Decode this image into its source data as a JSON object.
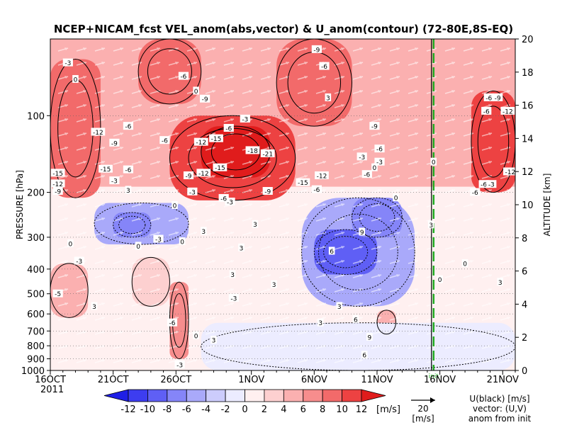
{
  "chart_data": {
    "type": "heatmap",
    "title": "NCEP+NICAM_fcst VEL_anom(abs,vector) & U_anom(contour)   (72-80E,8S-EQ)",
    "xlabel": "",
    "ylabel": "PRESSURE [hPa]",
    "ylabel_right": "ALTITUDE [km]",
    "year_label": "2011",
    "x_tick_labels": [
      "16OCT",
      "21OCT",
      "26OCT",
      "1NOV",
      "6NOV",
      "11NOV",
      "16NOV",
      "21NOV"
    ],
    "x_tick_days_from_16oct": [
      0,
      5,
      10,
      16,
      21,
      26,
      31,
      36
    ],
    "x_range_days_from_16oct": [
      0,
      37
    ],
    "y_tick_labels": [
      "100",
      "200",
      "300",
      "400",
      "500",
      "600",
      "700",
      "800",
      "900",
      "1000"
    ],
    "y_tick_values_hpa": [
      100,
      200,
      300,
      400,
      500,
      600,
      700,
      800,
      900,
      1000
    ],
    "y_range_hpa": [
      1000,
      50
    ],
    "y_scale": "log-pressure",
    "y_right_tick_labels": [
      "0",
      "2",
      "4",
      "6",
      "8",
      "10",
      "12",
      "14",
      "16",
      "18",
      "20"
    ],
    "colorbar_labels": [
      "-12",
      "-10",
      "-8",
      "-6",
      "-4",
      "-2",
      "0",
      "2",
      "4",
      "6",
      "8",
      "10",
      "12"
    ],
    "colorbar_unit": "[m/s]",
    "colorbar_colors": [
      "#1f1fe6",
      "#3d3df0",
      "#5f5ff5",
      "#8585f8",
      "#a9a9fa",
      "#ccccfc",
      "#ececff",
      "#fff0f0",
      "#fdd0d0",
      "#fbb0b0",
      "#f78d8d",
      "#f26a6a",
      "#ed4242",
      "#e01c1c"
    ],
    "forecast_init_marker": {
      "label": "init",
      "day": 30.5,
      "color": "#22aa22"
    },
    "vector_reference": {
      "value": "20",
      "unit": "[m/s]"
    },
    "legend_note": [
      "U(black) [m/s]",
      "vector: (U,V)",
      "anom from init"
    ],
    "regions": [
      {
        "x0": 0,
        "x1": 37,
        "p0": 190,
        "p1": 1000,
        "value": 1
      },
      {
        "x0": 0,
        "x1": 37,
        "p0": 50,
        "p1": 190,
        "value": 4
      },
      {
        "x0": 9.5,
        "x1": 19.5,
        "p0": 100,
        "p1": 215,
        "value": 11
      },
      {
        "x0": 12,
        "x1": 17.5,
        "p0": 110,
        "p1": 175,
        "value": 13
      },
      {
        "x0": 0,
        "x1": 4,
        "p0": 60,
        "p1": 210,
        "value": 8
      },
      {
        "x0": 33.5,
        "x1": 37,
        "p0": 80,
        "p1": 200,
        "value": 10
      },
      {
        "x0": 7,
        "x1": 12,
        "p0": 50,
        "p1": 90,
        "value": 9
      },
      {
        "x0": 18,
        "x1": 24,
        "p0": 50,
        "p1": 110,
        "value": 8
      },
      {
        "x0": 3.5,
        "x1": 11,
        "p0": 220,
        "p1": 320,
        "value": -5
      },
      {
        "x0": 5,
        "x1": 8,
        "p0": 240,
        "p1": 300,
        "value": -8
      },
      {
        "x0": 20,
        "x1": 29,
        "p0": 210,
        "p1": 560,
        "value": -6
      },
      {
        "x0": 21,
        "x1": 26,
        "p0": 280,
        "p1": 420,
        "value": -9
      },
      {
        "x0": 24,
        "x1": 28,
        "p0": 210,
        "p1": 300,
        "value": -7
      },
      {
        "x0": 0,
        "x1": 3,
        "p0": 380,
        "p1": 620,
        "value": 5
      },
      {
        "x0": 9.5,
        "x1": 11,
        "p0": 450,
        "p1": 900,
        "value": 6
      },
      {
        "x0": 6.5,
        "x1": 9.5,
        "p0": 360,
        "p1": 560,
        "value": 2
      },
      {
        "x0": 26,
        "x1": 27.5,
        "p0": 580,
        "p1": 720,
        "value": 5
      },
      {
        "x0": 12,
        "x1": 37,
        "p0": 650,
        "p1": 1000,
        "value": -1
      }
    ],
    "contour_labels": [
      {
        "text": "-3",
        "x": 1.4,
        "p": 62
      },
      {
        "text": "0",
        "x": 2.0,
        "p": 72
      },
      {
        "text": "-6",
        "x": 10.6,
        "p": 70
      },
      {
        "text": "0",
        "x": 11.6,
        "p": 80
      },
      {
        "text": "-9",
        "x": 12.3,
        "p": 86
      },
      {
        "text": "-9",
        "x": 21.2,
        "p": 55
      },
      {
        "text": "-6",
        "x": 21.8,
        "p": 64
      },
      {
        "text": "3",
        "x": 22.1,
        "p": 85
      },
      {
        "text": "-6",
        "x": 34.9,
        "p": 85
      },
      {
        "text": "-9",
        "x": 35.6,
        "p": 85
      },
      {
        "text": "-12",
        "x": 36.4,
        "p": 96
      },
      {
        "text": "-6",
        "x": 34.7,
        "p": 96
      },
      {
        "text": "-12",
        "x": 3.8,
        "p": 116
      },
      {
        "text": "-9",
        "x": 5.1,
        "p": 128
      },
      {
        "text": "-6",
        "x": 6.2,
        "p": 110
      },
      {
        "text": "-6",
        "x": 9.1,
        "p": 125
      },
      {
        "text": "-12",
        "x": 12.0,
        "p": 127
      },
      {
        "text": "-15",
        "x": 13.2,
        "p": 123
      },
      {
        "text": "-3",
        "x": 15.5,
        "p": 103
      },
      {
        "text": "-6",
        "x": 14.2,
        "p": 112
      },
      {
        "text": "-18",
        "x": 16.1,
        "p": 137
      },
      {
        "text": "-21",
        "x": 17.3,
        "p": 141
      },
      {
        "text": "-15",
        "x": 13.5,
        "p": 160
      },
      {
        "text": "-12",
        "x": 12.2,
        "p": 168
      },
      {
        "text": "-9",
        "x": 11.0,
        "p": 172
      },
      {
        "text": "-15",
        "x": 4.4,
        "p": 162
      },
      {
        "text": "-15",
        "x": 0.6,
        "p": 168
      },
      {
        "text": "-12",
        "x": 0.6,
        "p": 185
      },
      {
        "text": "-9",
        "x": 0.6,
        "p": 198
      },
      {
        "text": "-3",
        "x": 5.1,
        "p": 180
      },
      {
        "text": "-6",
        "x": 6.2,
        "p": 163
      },
      {
        "text": "-15",
        "x": 20.1,
        "p": 183
      },
      {
        "text": "-12",
        "x": 21.6,
        "p": 172
      },
      {
        "text": "-6",
        "x": 21.2,
        "p": 195
      },
      {
        "text": "-9",
        "x": 17.3,
        "p": 198
      },
      {
        "text": "-3",
        "x": 11.3,
        "p": 199
      },
      {
        "text": "-3",
        "x": 14.3,
        "p": 218
      },
      {
        "text": "-6",
        "x": 13.8,
        "p": 211
      },
      {
        "text": "-3",
        "x": 24.8,
        "p": 145
      },
      {
        "text": "-6",
        "x": 25.2,
        "p": 170
      },
      {
        "text": "-3",
        "x": 26.2,
        "p": 152
      },
      {
        "text": "-6",
        "x": 26.2,
        "p": 135
      },
      {
        "text": "-9",
        "x": 25.8,
        "p": 110
      },
      {
        "text": "0",
        "x": 30.5,
        "p": 152
      },
      {
        "text": "-6",
        "x": 34.5,
        "p": 186
      },
      {
        "text": "-3",
        "x": 35.1,
        "p": 186
      },
      {
        "text": "-12",
        "x": 36.6,
        "p": 166
      },
      {
        "text": "-6",
        "x": 33.8,
        "p": 200
      },
      {
        "text": "3",
        "x": 6.2,
        "p": 196
      },
      {
        "text": "0",
        "x": 9.9,
        "p": 225
      },
      {
        "text": "3",
        "x": 16.3,
        "p": 267
      },
      {
        "text": "3",
        "x": 12.2,
        "p": 284
      },
      {
        "text": "0",
        "x": 10.5,
        "p": 312
      },
      {
        "text": "-3",
        "x": 8.6,
        "p": 305
      },
      {
        "text": "0",
        "x": 1.6,
        "p": 318
      },
      {
        "text": "0",
        "x": 7.0,
        "p": 325
      },
      {
        "text": "3",
        "x": 15.2,
        "p": 330
      },
      {
        "text": "0",
        "x": 25.8,
        "p": 160
      },
      {
        "text": "3",
        "x": 30.3,
        "p": 268
      },
      {
        "text": "0",
        "x": 27.5,
        "p": 210
      },
      {
        "text": "9",
        "x": 24.8,
        "p": 286
      },
      {
        "text": "6",
        "x": 22.4,
        "p": 340
      },
      {
        "text": "-3",
        "x": 2.3,
        "p": 372
      },
      {
        "text": "-5",
        "x": 0.6,
        "p": 500
      },
      {
        "text": "-3",
        "x": 14.6,
        "p": 520
      },
      {
        "text": "-6",
        "x": 9.7,
        "p": 650
      },
      {
        "text": "6",
        "x": 24.3,
        "p": 630
      },
      {
        "text": "3",
        "x": 23.0,
        "p": 560
      },
      {
        "text": "0",
        "x": 31.0,
        "p": 440
      },
      {
        "text": "0",
        "x": 33.0,
        "p": 380
      },
      {
        "text": "3",
        "x": 14.5,
        "p": 420
      },
      {
        "text": "3",
        "x": 17.8,
        "p": 460
      },
      {
        "text": "3",
        "x": 21.5,
        "p": 650
      },
      {
        "text": "9",
        "x": 25.4,
        "p": 740
      },
      {
        "text": "3",
        "x": 13.0,
        "p": 760
      },
      {
        "text": "6",
        "x": 25.0,
        "p": 870
      },
      {
        "text": "-3",
        "x": 10.3,
        "p": 950
      },
      {
        "text": "3",
        "x": 3.5,
        "p": 560
      },
      {
        "text": "0",
        "x": 11.6,
        "p": 730
      },
      {
        "text": "3",
        "x": 35.8,
        "p": 450
      }
    ]
  }
}
